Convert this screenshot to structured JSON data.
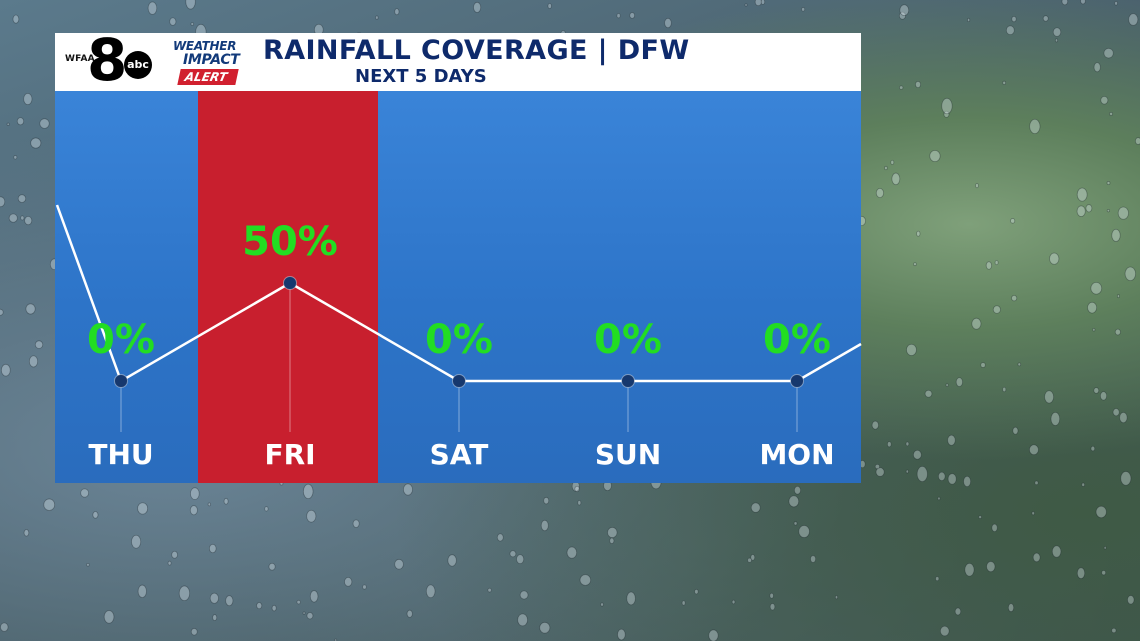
{
  "header": {
    "station_call": "WFAA",
    "channel": "8",
    "network": "abc",
    "badge_line1": "WEATHER",
    "badge_line2": "IMPACT",
    "badge_line3": "ALERT",
    "title": "RAINFALL COVERAGE | DFW",
    "subtitle": "NEXT 5 DAYS"
  },
  "colors": {
    "panel_blue": "#2f78cc",
    "highlight_red": "#c81f2e",
    "value_green": "#22dd22",
    "line_white": "#ffffff",
    "point_navy": "#16386e",
    "title_navy": "#0e2a6b"
  },
  "chart_data": {
    "type": "line",
    "title": "RAINFALL COVERAGE | DFW",
    "subtitle": "NEXT 5 DAYS",
    "categories": [
      "THU",
      "FRI",
      "SAT",
      "SUN",
      "MON"
    ],
    "values": [
      0,
      50,
      0,
      0,
      0
    ],
    "value_labels": [
      "0%",
      "50%",
      "0%",
      "0%",
      "0%"
    ],
    "highlight_category": "FRI",
    "unit": "%",
    "ylim": [
      0,
      100
    ],
    "grid": false,
    "legend": "none"
  }
}
